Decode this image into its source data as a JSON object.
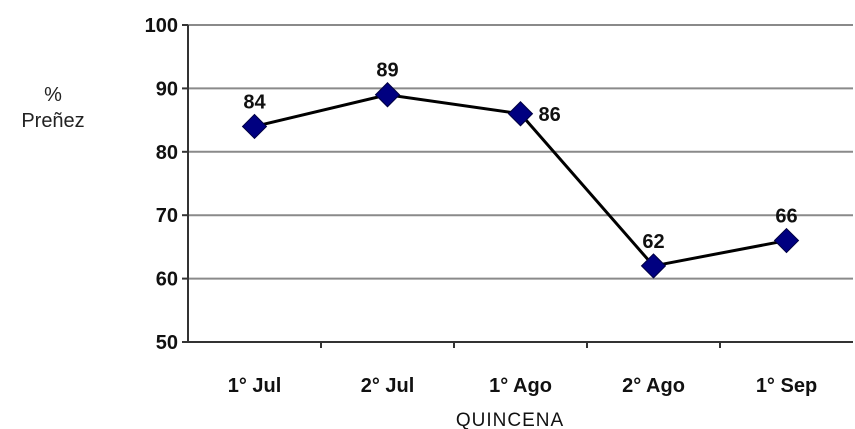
{
  "chart_data": {
    "type": "line",
    "categories": [
      "1° Jul",
      "2° Jul",
      "1° Ago",
      "2° Ago",
      "1° Sep"
    ],
    "values": [
      84,
      89,
      86,
      62,
      66
    ],
    "data_labels": [
      "84",
      "89",
      "86",
      "62",
      "66"
    ],
    "ylabel_line1": "%",
    "ylabel_line2": "Preñez",
    "xlabel": "QUINCENA",
    "ylim": [
      50,
      100
    ],
    "yticks": [
      50,
      60,
      70,
      80,
      90,
      100
    ],
    "grid": true,
    "line_color": "#000000",
    "marker_color": "#000080",
    "marker_shape": "diamond",
    "legend": "none"
  }
}
